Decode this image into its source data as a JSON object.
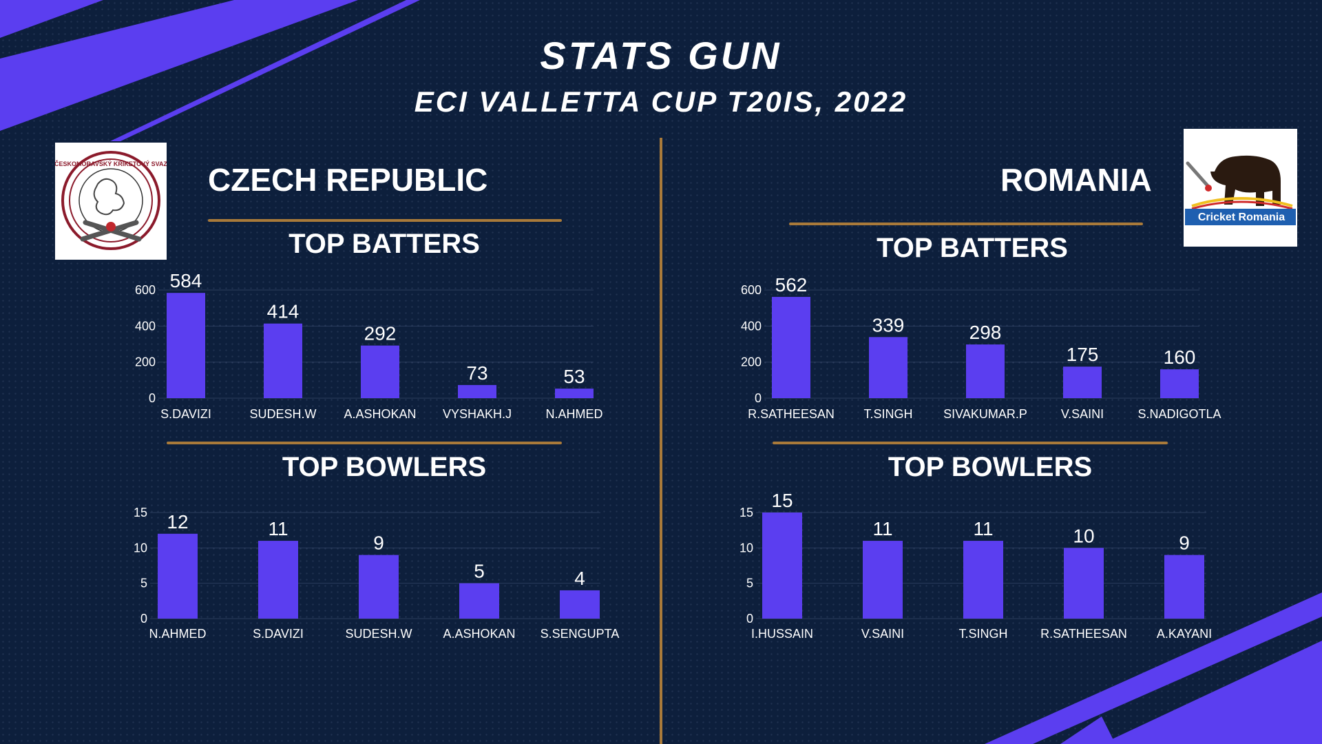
{
  "header": {
    "title": "STATS GUN",
    "subtitle": "ECI VALLETTA CUP T20IS, 2022"
  },
  "colors": {
    "background": "#0d1f3c",
    "bar": "#5b3ef0",
    "gold": "#a97a3a",
    "accent_stripes": "#5b3ef0"
  },
  "teams": {
    "left": {
      "name": "CZECH REPUBLIC",
      "logo_icon": "czech-cricket-crest-icon",
      "logo_text": "ČESKOMORAVSKÝ KRIKETOVÝ SVAZ",
      "batters_title": "TOP BATTERS",
      "bowlers_title": "TOP BOWLERS"
    },
    "right": {
      "name": "ROMANIA",
      "logo_icon": "cricket-romania-bear-icon",
      "logo_text": "Cricket Romania",
      "batters_title": "TOP BATTERS",
      "bowlers_title": "TOP BOWLERS"
    }
  },
  "chart_data": [
    {
      "id": "czech-batters",
      "type": "bar",
      "title": "TOP BATTERS",
      "categories": [
        "S.DAVIZI",
        "SUDESH.W",
        "A.ASHOKAN",
        "VYSHAKH.J",
        "N.AHMED"
      ],
      "values": [
        584,
        414,
        292,
        73,
        53
      ],
      "ylim": [
        0,
        600
      ],
      "yticks": [
        0,
        200,
        400,
        600
      ],
      "grid": true,
      "data_labels": true
    },
    {
      "id": "czech-bowlers",
      "type": "bar",
      "title": "TOP BOWLERS",
      "categories": [
        "N.AHMED",
        "S.DAVIZI",
        "SUDESH.W",
        "A.ASHOKAN",
        "S.SENGUPTA"
      ],
      "values": [
        12,
        11,
        9,
        5,
        4
      ],
      "ylim": [
        0,
        15
      ],
      "yticks": [
        0,
        5,
        10,
        15
      ],
      "grid": true,
      "data_labels": true
    },
    {
      "id": "romania-batters",
      "type": "bar",
      "title": "TOP BATTERS",
      "categories": [
        "R.SATHEESAN",
        "T.SINGH",
        "SIVAKUMAR.P",
        "V.SAINI",
        "S.NADIGOTLA"
      ],
      "values": [
        562,
        339,
        298,
        175,
        160
      ],
      "ylim": [
        0,
        600
      ],
      "yticks": [
        0,
        200,
        400,
        600
      ],
      "grid": true,
      "data_labels": true
    },
    {
      "id": "romania-bowlers",
      "type": "bar",
      "title": "TOP BOWLERS",
      "categories": [
        "I.HUSSAIN",
        "V.SAINI",
        "T.SINGH",
        "R.SATHEESAN",
        "A.KAYANI"
      ],
      "values": [
        15,
        11,
        11,
        10,
        9
      ],
      "ylim": [
        0,
        15
      ],
      "yticks": [
        0,
        5,
        10,
        15
      ],
      "grid": true,
      "data_labels": true
    }
  ]
}
